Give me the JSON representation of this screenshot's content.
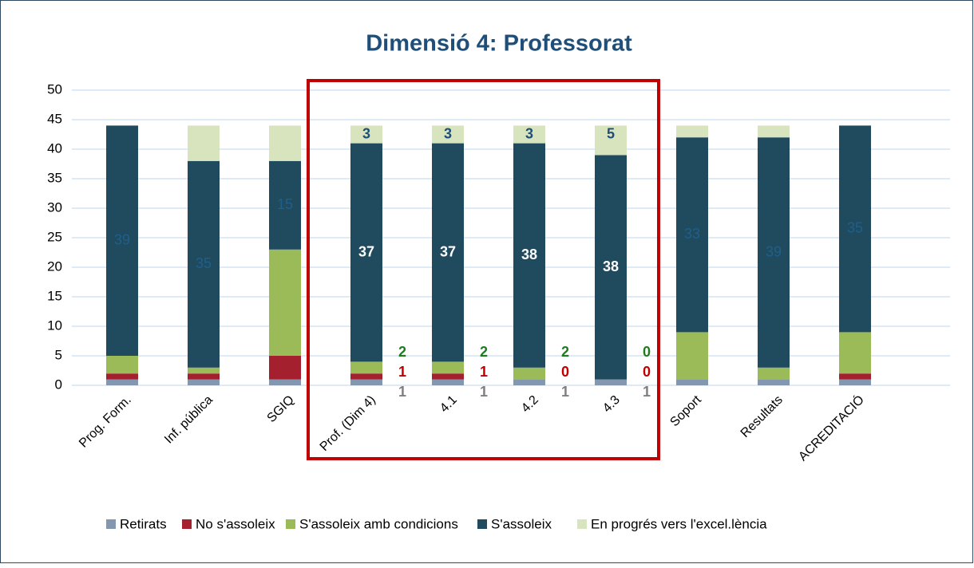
{
  "chart_data": {
    "type": "stacked_bar",
    "title": "Dimensió 4: Professorat",
    "categories": [
      "Prog. Form.",
      "Inf. pública",
      "SGIQ",
      "Prof. (Dim 4)",
      "4.1",
      "4.2",
      "4.3",
      "Soport",
      "Resultats",
      "ACREDITACIÓ"
    ],
    "series": [
      {
        "name": "Retirats",
        "color": "#8497b0",
        "label_color": "#7f7f7f",
        "values": [
          1,
          1,
          1,
          1,
          1,
          1,
          1,
          1,
          1,
          1
        ],
        "value_labels": [
          null,
          null,
          null,
          1,
          1,
          1,
          1,
          null,
          null,
          null
        ]
      },
      {
        "name": "No s'assoleix",
        "color": "#a5202e",
        "label_color": "#c00000",
        "values": [
          1,
          1,
          4,
          1,
          1,
          0,
          0,
          0,
          0,
          1
        ],
        "value_labels": [
          null,
          null,
          null,
          1,
          1,
          0,
          0,
          null,
          null,
          null
        ]
      },
      {
        "name": "S'assoleix amb condicions",
        "color": "#9bbb59",
        "label_color": "#1e7b1e",
        "values": [
          3,
          1,
          18,
          2,
          2,
          2,
          0,
          8,
          2,
          7
        ],
        "value_labels": [
          null,
          null,
          null,
          2,
          2,
          2,
          0,
          null,
          null,
          null
        ]
      },
      {
        "name": "S'assoleix",
        "color": "#204a5e",
        "label_color": "#ffffff",
        "values": [
          39,
          35,
          15,
          37,
          37,
          38,
          38,
          33,
          39,
          35
        ],
        "value_labels": [
          39,
          35,
          15,
          37,
          37,
          38,
          38,
          33,
          39,
          35
        ]
      },
      {
        "name": "En progrés vers l'excel.lència",
        "color": "#d7e4bd",
        "label_color": "#1f4e79",
        "values": [
          0,
          6,
          6,
          3,
          3,
          3,
          5,
          2,
          2,
          0
        ],
        "value_labels": [
          null,
          null,
          null,
          3,
          3,
          3,
          5,
          null,
          null,
          null
        ]
      }
    ],
    "ylim": [
      0,
      50
    ],
    "yticks": [
      0,
      5,
      10,
      15,
      20,
      25,
      30,
      35,
      40,
      45,
      50
    ],
    "grid": true,
    "legend": "bottom"
  }
}
